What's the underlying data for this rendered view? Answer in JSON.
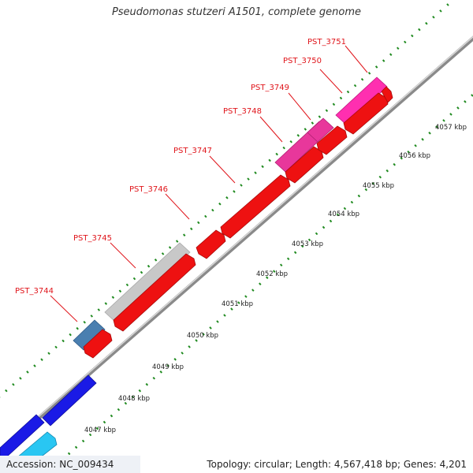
{
  "title": "Pseudomonas stutzeri A1501, complete genome",
  "footer": {
    "accession": "Accession: NC_009434",
    "summary": "Topology: circular; Length: 4,567,418 bp; Genes: 4,201"
  },
  "colors": {
    "gene_red": "#ee1111",
    "gene_pink": "#e8379b",
    "gene_magenta": "#ff2fb0",
    "gene_gray": "#c8c8c8",
    "gene_steelblue": "#4a7fb0",
    "gene_blue": "#1a1ae6",
    "gene_cyan": "#29c6f2",
    "backbone": "#8a8a8a",
    "tick_green": "#1f8a1f",
    "label_red": "#e0151b"
  },
  "scale_ticks": [
    "4047 kbp",
    "4048 kbp",
    "4049 kbp",
    "4050 kbp",
    "4051 kbp",
    "4052 kbp",
    "4053 kbp",
    "4054 kbp",
    "4055 kbp",
    "4056 kbp",
    "4057 kbp"
  ],
  "gene_labels": [
    "PST_3744",
    "PST_3745",
    "PST_3746",
    "PST_3747",
    "PST_3748",
    "PST_3749",
    "PST_3750",
    "PST_3751"
  ]
}
